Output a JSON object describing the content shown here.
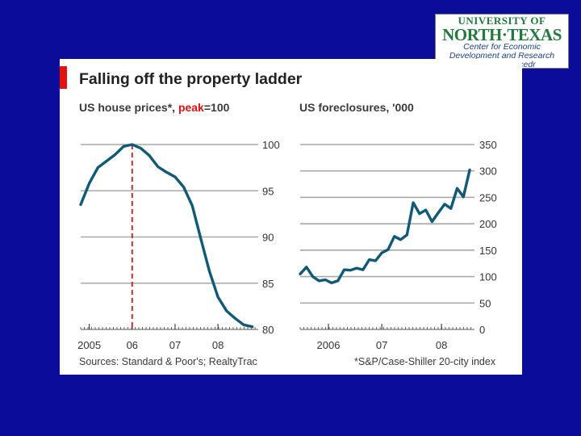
{
  "logo": {
    "line1": "UNIVERSITY OF",
    "line2": "NORTH·TEXAS",
    "line3": "Center for Economic",
    "line4": "Development and Research",
    "line5": "www.unt.edu/cedr"
  },
  "title": "Falling off the property ladder",
  "footer": {
    "left": "Sources: Standard & Poor's; RealtyTrac",
    "right": "*S&P/Case-Shiller 20-city index"
  },
  "colors": {
    "line": "#0f5a78",
    "accent": "#e3120b",
    "grid": "#a9a9a9"
  },
  "chart_data": [
    {
      "type": "line",
      "title_parts": [
        "US house prices*, ",
        "peak",
        "=100"
      ],
      "ylim": [
        80,
        100
      ],
      "yticks": [
        "100",
        "95",
        "90",
        "85",
        "80"
      ],
      "xticks": [
        "2005",
        "06",
        "07",
        "08"
      ],
      "xrange": [
        2004.8,
        2008.9
      ],
      "peak_marker_x": 2006.0,
      "x": [
        2004.8,
        2005.0,
        2005.2,
        2005.4,
        2005.6,
        2005.8,
        2006.0,
        2006.2,
        2006.4,
        2006.6,
        2006.8,
        2007.0,
        2007.2,
        2007.4,
        2007.6,
        2007.8,
        2008.0,
        2008.2,
        2008.4,
        2008.6,
        2008.8
      ],
      "values": [
        93.5,
        95.8,
        97.5,
        98.2,
        98.9,
        99.8,
        100,
        99.6,
        98.8,
        97.6,
        97.0,
        96.5,
        95.4,
        93.4,
        89.8,
        86.3,
        83.5,
        82.0,
        81.2,
        80.5,
        80.3
      ]
    },
    {
      "type": "line",
      "title": "US foreclosures, '000",
      "ylim": [
        0,
        350
      ],
      "yticks": [
        "350",
        "300",
        "250",
        "200",
        "150",
        "100",
        "50",
        "0"
      ],
      "xticks": [
        "2006",
        "07",
        "08"
      ],
      "xrange": [
        2005.95,
        2008.7
      ],
      "x": [
        2005.95,
        2006.05,
        2006.15,
        2006.25,
        2006.35,
        2006.45,
        2006.55,
        2006.65,
        2006.75,
        2006.85,
        2006.95,
        2007.05,
        2007.15,
        2007.25,
        2007.35,
        2007.45,
        2007.55,
        2007.65,
        2007.75,
        2007.85,
        2007.95,
        2008.05,
        2008.15,
        2008.25,
        2008.35,
        2008.45,
        2008.55,
        2008.65
      ],
      "values": [
        105,
        118,
        100,
        92,
        94,
        88,
        92,
        113,
        112,
        116,
        113,
        132,
        130,
        145,
        151,
        176,
        170,
        179,
        240,
        219,
        226,
        204,
        221,
        237,
        229,
        267,
        251,
        302
      ]
    }
  ]
}
